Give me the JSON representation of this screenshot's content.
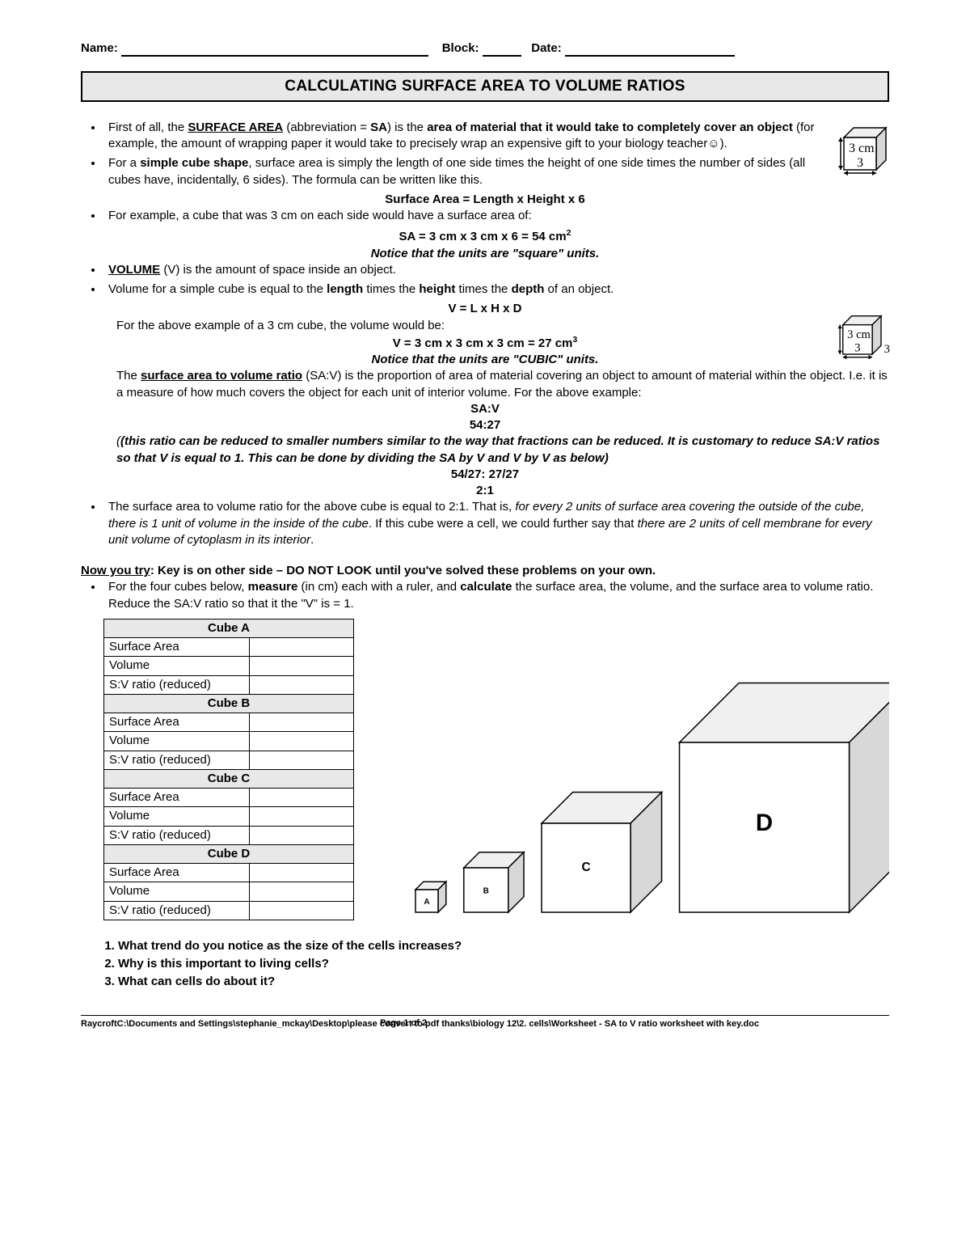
{
  "header": {
    "name_label": "Name:",
    "block_label": "Block:",
    "date_label": "Date:"
  },
  "title": "CALCULATING SURFACE AREA TO VOLUME RATIOS",
  "cube_labels": {
    "side": "3 cm",
    "front": "3",
    "depth": "3"
  },
  "bullets": {
    "b1_a": "First of all, the ",
    "b1_b": "SURFACE AREA",
    "b1_c": " (abbreviation = ",
    "b1_d": "SA",
    "b1_e": ") is the ",
    "b1_f": "area of material that it would take to completely cover an object",
    "b1_g": " (for example, the amount of wrapping paper it would take to precisely wrap an expensive gift to your biology teacher☺).",
    "b2_a": "For a ",
    "b2_b": "simple cube shape",
    "b2_c": ", surface area is simply the length of one side times the height of one side times the number of sides (all cubes have, incidentally, 6 sides). The formula can be written like this.",
    "formula_sa": "Surface Area = Length x Height x 6",
    "b3": "For example, a cube that was 3 cm on each side would have a surface area of:",
    "sa_calc": "SA = 3 cm x 3 cm x  6    =    54 cm",
    "sa_exp": "2",
    "units_sq": "Notice that the units are \"square\" units.",
    "b4_a": "VOLUME",
    "b4_b": " (V) is the amount of space inside an object.",
    "b5_a": "Volume for a simple cube is equal to the ",
    "b5_b": "length",
    "b5_c": " times the ",
    "b5_d": "height",
    "b5_e": " times the ",
    "b5_f": "depth",
    "b5_g": " of an object.",
    "formula_v": "V = L x H x D",
    "v_intro": "For the above example of a 3 cm cube, the volume would be:",
    "v_calc": "V = 3 cm x 3 cm x 3 cm = 27 cm",
    "v_exp": "3",
    "units_cu": "Notice that the units are \"CUBIC\" units.",
    "ratio_a": "The ",
    "ratio_b": "surface area to volume ratio",
    "ratio_c": " (SA:V) is the proportion of area of material covering an object to amount of material within the object.  I.e. it is a measure of how much covers the object for each unit of interior volume. For the above example:",
    "sav": "SA:V",
    "r54_27": "54:27",
    "reduce_note": "(this ratio can be reduced to smaller numbers similar to the way that fractions can be reduced.  It is customary to reduce SA:V ratios so that V is equal to 1.  This can be done by dividing the SA by V and V by V as below)",
    "r_div": "54/27: 27/27",
    "r_final": "2:1",
    "b6_a": "The surface area to volume ratio for the above cube is equal to 2:1.  That is, ",
    "b6_b": "for every 2 units of surface area covering the outside of the cube, there is 1 unit of volume in the inside of the cube",
    "b6_c": ".  If this cube were a cell, we could further say that ",
    "b6_d": "there are 2 units of cell membrane for every unit volume of cytoplasm in its interior",
    "b6_e": "."
  },
  "try": {
    "heading_a": "Now you try",
    "heading_b": ":  Key is on other side – DO NOT LOOK until you've solved these problems on your own.",
    "instr_a": "For the four cubes below, ",
    "instr_b": "measure",
    "instr_c": " (in cm) each with a ruler, and ",
    "instr_d": "calculate",
    "instr_e": " the surface area, the volume, and the surface area to volume ratio.  Reduce the SA:V ratio so that it the \"V\" is = 1."
  },
  "table": {
    "sections": [
      "Cube A",
      "Cube B",
      "Cube C",
      "Cube D"
    ],
    "rows": [
      "Surface Area",
      "Volume",
      "S:V ratio (reduced)"
    ]
  },
  "cubes_fig": {
    "labels": [
      "A",
      "B",
      "C",
      "D"
    ],
    "sizes": [
      28,
      55,
      110,
      210
    ],
    "colors": {
      "top": "#f0f0f0",
      "side": "#d8d8d8",
      "front": "#ffffff",
      "stroke": "#000000"
    }
  },
  "questions": [
    "What trend do you notice as the size of the cells increases?",
    "Why is this important to living cells?",
    "What can cells do about it?"
  ],
  "footer": {
    "path": "RaycroftC:\\Documents and Settings\\stephanie_mckay\\Desktop\\please convert to pdf thanks\\biology 12\\2. cells\\Worksheet - SA to V ratio worksheet with key.doc",
    "page": "Page 1 of 2"
  }
}
